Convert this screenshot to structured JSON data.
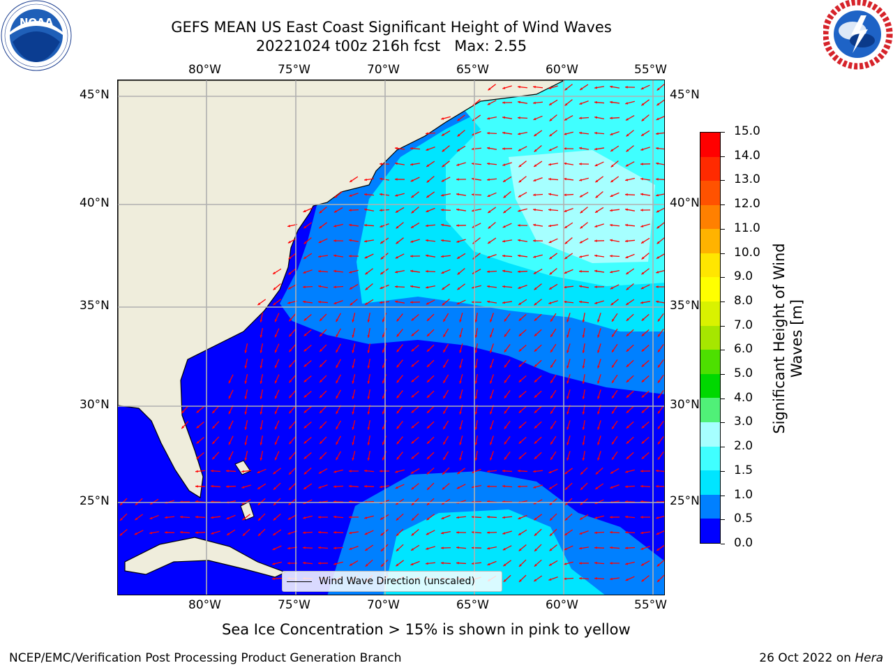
{
  "title_line1": "GEFS MEAN US East Coast Significant Height of Wind Waves",
  "title_line2": "20221024 t00z 216h fcst   Max: 2.55",
  "logos": {
    "left": {
      "name": "NOAA",
      "text": "NOAA",
      "ring_text": "NATIONAL OCEANIC AND ATMOSPHERIC ADMINISTRATION · U.S. DEPARTMENT OF COMMERCE"
    },
    "right": {
      "name": "National Weather Service",
      "ring_text": "NATIONAL WEATHER SERVICE"
    }
  },
  "map": {
    "lon_ticks": [
      "80°W",
      "75°W",
      "70°W",
      "65°W",
      "60°W",
      "55°W"
    ],
    "lat_ticks": [
      "45°N",
      "40°N",
      "35°N",
      "30°N",
      "25°N"
    ],
    "legend": "Wind Wave Direction (unscaled)",
    "colors": {
      "land": "#efeddc",
      "arrow": "#ff0000",
      "gridline": "#b0b0b0"
    }
  },
  "colorbar": {
    "label": "Significant Height of Wind Waves [m]",
    "ticks": [
      "0.0",
      "0.5",
      "1.0",
      "1.5",
      "2.0",
      "3.0",
      "4.0",
      "5.0",
      "6.0",
      "7.0",
      "8.0",
      "9.0",
      "10.0",
      "11.0",
      "12.0",
      "13.0",
      "14.0",
      "15.0"
    ],
    "colors": [
      "#0000ff",
      "#0080ff",
      "#00e5ff",
      "#40ffff",
      "#a6ffff",
      "#50f078",
      "#00d800",
      "#4de000",
      "#a6e600",
      "#d9f200",
      "#ffff00",
      "#ffe600",
      "#ffb300",
      "#ff8000",
      "#ff5200",
      "#ff2a00",
      "#ff0000"
    ]
  },
  "note": "Sea Ice Concentration > 15% is shown in pink to yellow",
  "footer_left": "NCEP/EMC/Verification Post Processing Product Generation Branch",
  "footer_right_text": "26 Oct 2022 on ",
  "footer_right_host": "Hera"
}
